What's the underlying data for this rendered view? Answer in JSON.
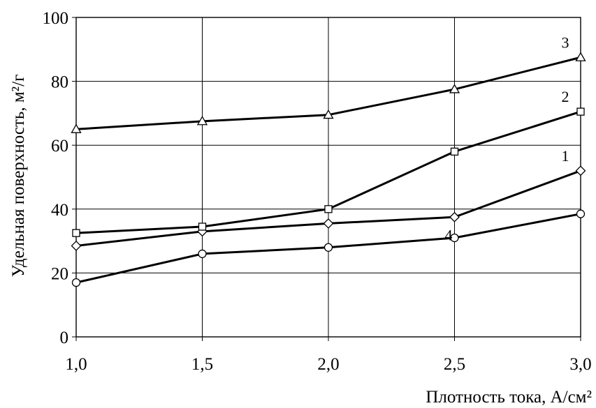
{
  "chart_data": {
    "type": "line",
    "xlabel": "Плотность тока, А/см²",
    "ylabel": "Удельная поверхность, м²/г",
    "xlim": [
      1.0,
      3.0
    ],
    "ylim": [
      0,
      100
    ],
    "x_ticks": [
      "1,0",
      "1,5",
      "2,0",
      "2,5",
      "3,0"
    ],
    "y_ticks": [
      "0",
      "20",
      "40",
      "60",
      "80",
      "100"
    ],
    "grid": true,
    "x": [
      1.0,
      1.5,
      2.0,
      2.5,
      3.0
    ],
    "series": [
      {
        "name": "1",
        "marker": "diamond",
        "values": [
          28.5,
          33,
          35.5,
          37.5,
          52
        ]
      },
      {
        "name": "2",
        "marker": "square",
        "values": [
          32.5,
          34.5,
          40,
          58,
          70.5
        ]
      },
      {
        "name": "3",
        "marker": "triangle",
        "values": [
          65,
          67.5,
          69.5,
          77.5,
          87.5
        ]
      },
      {
        "name": "4",
        "marker": "circle",
        "values": [
          17,
          26,
          28,
          31,
          38.5
        ]
      }
    ]
  }
}
